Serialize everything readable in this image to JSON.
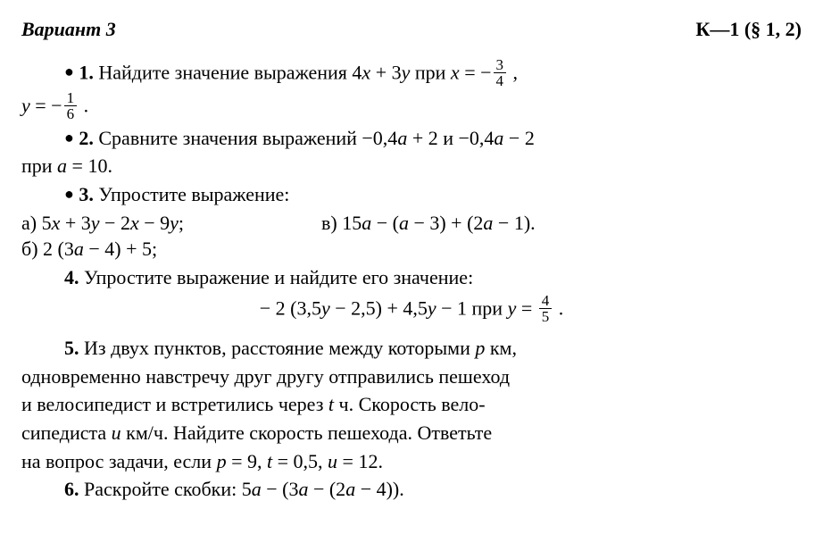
{
  "header": {
    "variant": "Вариант 3",
    "ref": "К—1 (§ 1, 2)"
  },
  "p1": {
    "bullet": "●",
    "num": "1.",
    "text_a": "Найдите значение выражения 4",
    "x": "x",
    "plus": " + 3",
    "y": "y",
    "text_b": " при ",
    "xeq": "x",
    "eq1": " = −",
    "f1t": "3",
    "f1b": "4",
    "comma": " ,",
    "yvar": "y",
    "eq2": " = −",
    "f2t": "1",
    "f2b": "6",
    "dot": " ."
  },
  "p2": {
    "bullet": "●",
    "num": "2.",
    "text_a": "Сравните значения выражений −0,4",
    "a1": "a",
    "t2": " + 2 и −0,4",
    "a2": "a",
    "t3": " − 2",
    "line2a": "при ",
    "a3": "a",
    "line2b": " = 10."
  },
  "p3": {
    "bullet": "●",
    "num": "3.",
    "text": "Упростите выражение:",
    "a_label": "а) ",
    "a_expr1": "5",
    "x1": "x",
    "a_expr2": " + 3",
    "y1": "y",
    "a_expr3": " − 2",
    "x2": "x",
    "a_expr4": " − 9",
    "y2": "y",
    "a_expr5": ";",
    "v_label": "в) ",
    "v_expr1": "15",
    "va1": "a",
    "v_expr2": " − (",
    "va2": "a",
    "v_expr3": " − 3) + (2",
    "va3": "a",
    "v_expr4": " − 1).",
    "b_label": "б) ",
    "b_expr1": "2 (3",
    "ba": "a",
    "b_expr2": " − 4) + 5;"
  },
  "p4": {
    "num": "4.",
    "text": "Упростите выражение и найдите его значение:",
    "eq1": "− 2 (3,5",
    "y1": "y",
    "eq2": " − 2,5) + 4,5",
    "y2": "y",
    "eq3": " − 1 при ",
    "y3": "y",
    "eq4": " = ",
    "ft": "4",
    "fb": "5",
    "eq5": " ."
  },
  "p5": {
    "num": "5.",
    "t1": "Из двух пунктов, расстояние между которыми ",
    "p": "p",
    "t2": " км,",
    "l2": "одновременно навстречу друг другу отправились пешеход",
    "l3a": "и велосипедист и встретились через ",
    "tv": "t",
    "l3b": " ч. Скорость вело-",
    "l4a": "сипедиста ",
    "uv": "u",
    "l4b": " км/ч. Найдите скорость пешехода. Ответьте",
    "l5a": "на вопрос задачи, если ",
    "pv": "p",
    "l5b": " = 9, ",
    "tv2": "t",
    "l5c": " = 0,5, ",
    "uv2": "u",
    "l5d": " = 12."
  },
  "p6": {
    "num": "6.",
    "t1": "Раскройте скобки: 5",
    "a1": "a",
    "t2": " − (3",
    "a2": "a",
    "t3": " − (2",
    "a3": "a",
    "t4": " − 4))."
  }
}
